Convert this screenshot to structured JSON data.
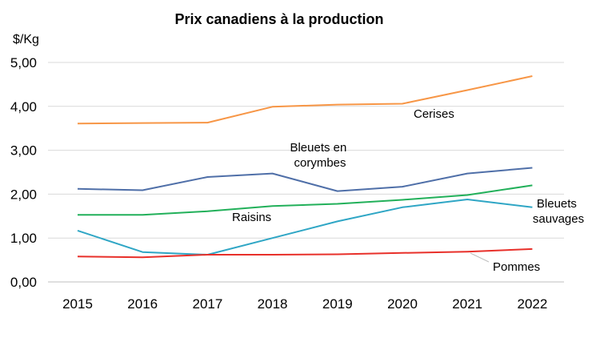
{
  "chart_data": {
    "type": "line",
    "title": "Prix canadiens à la production",
    "ylabel": "$/Kg",
    "xlabel": "",
    "categories": [
      "2015",
      "2016",
      "2017",
      "2018",
      "2019",
      "2020",
      "2021",
      "2022"
    ],
    "ylim": [
      0,
      5
    ],
    "yticks": [
      "0,00",
      "1,00",
      "2,00",
      "3,00",
      "4,00",
      "5,00"
    ],
    "grid": true,
    "series": [
      {
        "name": "Cerises",
        "color": "#f79646",
        "values": [
          3.61,
          3.62,
          3.63,
          3.99,
          4.04,
          4.06,
          4.37,
          4.69
        ]
      },
      {
        "name": "Bleuets en corymbes",
        "color": "#4f6fa8",
        "values": [
          2.12,
          2.09,
          2.39,
          2.47,
          2.07,
          2.17,
          2.47,
          2.6
        ]
      },
      {
        "name": "Raisins",
        "color": "#22b05a",
        "values": [
          1.53,
          1.53,
          1.61,
          1.73,
          1.78,
          1.87,
          1.98,
          2.2
        ]
      },
      {
        "name": "Bleuets sauvages",
        "color": "#2fa6c5",
        "values": [
          1.17,
          0.68,
          0.62,
          1.0,
          1.38,
          1.7,
          1.88,
          1.7
        ]
      },
      {
        "name": "Pommes",
        "color": "#e8302a",
        "values": [
          0.58,
          0.56,
          0.62,
          0.62,
          0.63,
          0.66,
          0.69,
          0.75
        ]
      }
    ]
  }
}
